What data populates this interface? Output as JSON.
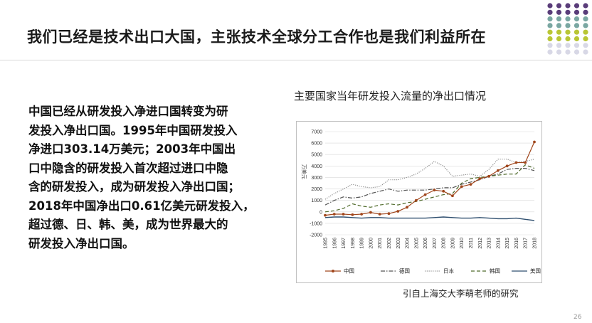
{
  "slide": {
    "title": "我们已经是技术出口大国，主张技术全球分工合作也是我们利益所在",
    "body_lines": [
      "中国已经从研发投入净进口国转变为研",
      "发投入净出口国。1995年中国研发投入",
      "净进口303.14万美元；2003年中国出",
      "口中隐含的研发投入首次超过进口中隐",
      "含的研发投入，成为研发投入净出口国；",
      "2018年中国净出口0.61亿美元研发投入，",
      "超过德、日、韩、美，成为世界最大的",
      "研发投入净出口国。"
    ],
    "source": "引自上海交大李萌老师的研究",
    "page_number": "26"
  },
  "decor": {
    "dot_colors": [
      "#5a3d7a",
      "#7aa7a2",
      "#b9c635",
      "#d8d8e6"
    ]
  },
  "chart_data": {
    "type": "line",
    "title": "主要国家当年研发投入流量的净出口情况",
    "ylabel": "万美元",
    "xlabel": "",
    "ylim": [
      -2000,
      7000
    ],
    "yticks": [
      "-2000",
      "-1000",
      "0",
      "1000",
      "2000",
      "3000",
      "4000",
      "5000",
      "6000",
      "7000"
    ],
    "categories": [
      "1995",
      "1996",
      "1997",
      "1998",
      "1999",
      "2000",
      "2001",
      "2002",
      "2003",
      "2004",
      "2005",
      "2006",
      "2007",
      "2008",
      "2009",
      "2010",
      "2011",
      "2012",
      "2013",
      "2014",
      "2015",
      "2016",
      "2017",
      "2018"
    ],
    "grid": true,
    "legend_position": "bottom",
    "series": [
      {
        "name": "中国",
        "style": "marker",
        "color": "#a0461c",
        "values": [
          -300,
          -200,
          -200,
          -250,
          -200,
          -50,
          -200,
          -150,
          50,
          400,
          1000,
          1500,
          1900,
          1800,
          1400,
          2200,
          2400,
          2900,
          3100,
          3600,
          4000,
          4300,
          4300,
          6100
        ]
      },
      {
        "name": "德国",
        "style": "dashdot",
        "color": "#555555",
        "values": [
          600,
          1000,
          1300,
          1200,
          1300,
          1600,
          1800,
          2000,
          1800,
          1900,
          1900,
          1900,
          2000,
          2100,
          2100,
          2400,
          2600,
          2800,
          3100,
          3300,
          3700,
          3800,
          3800,
          3600
        ]
      },
      {
        "name": "日本",
        "style": "dotted",
        "color": "#8c8c8c",
        "values": [
          1100,
          1600,
          2000,
          2400,
          2200,
          2100,
          2200,
          2800,
          2800,
          3000,
          3300,
          3800,
          4400,
          4000,
          3100,
          3200,
          3300,
          3100,
          3700,
          4600,
          4600,
          4300,
          4400,
          4600
        ]
      },
      {
        "name": "韩国",
        "style": "dashed",
        "color": "#4f6a2a",
        "values": [
          0,
          100,
          300,
          700,
          500,
          400,
          600,
          700,
          600,
          800,
          900,
          1100,
          1300,
          1500,
          1600,
          2500,
          2900,
          3000,
          3100,
          3200,
          3300,
          3300,
          4100,
          3800
        ]
      },
      {
        "name": "美国",
        "style": "solid",
        "color": "#2f4f6f",
        "values": [
          -500,
          -450,
          -450,
          -500,
          -550,
          -500,
          -500,
          -550,
          -550,
          -550,
          -550,
          -550,
          -500,
          -450,
          -500,
          -550,
          -550,
          -500,
          -550,
          -600,
          -600,
          -550,
          -650,
          -750
        ]
      }
    ]
  }
}
